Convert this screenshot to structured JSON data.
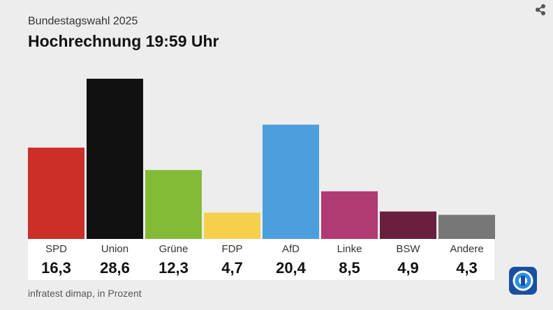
{
  "header": {
    "supertitle": "Bundestagswahl 2025",
    "title": "Hochrechnung 19:59 Uhr"
  },
  "icons": {
    "share": "share-icon",
    "logo": "tagesschau-logo-icon"
  },
  "footer": {
    "source": "infratest dimap, in Prozent"
  },
  "chart_data": {
    "type": "bar",
    "categories": [
      "SPD",
      "Union",
      "Grüne",
      "FDP",
      "AfD",
      "Linke",
      "BSW",
      "Andere"
    ],
    "values": [
      16.3,
      28.6,
      12.3,
      4.7,
      20.4,
      8.5,
      4.9,
      4.3
    ],
    "value_labels": [
      "16,3",
      "28,6",
      "12,3",
      "4,7",
      "20,4",
      "8,5",
      "4,9",
      "4,3"
    ],
    "colors": [
      "#cc2e28",
      "#111111",
      "#84bb36",
      "#f6d04d",
      "#4c9fdc",
      "#b03a72",
      "#6b1f3e",
      "#777777"
    ],
    "ylim": [
      0,
      28.6
    ],
    "grid": false,
    "legend": "none"
  }
}
